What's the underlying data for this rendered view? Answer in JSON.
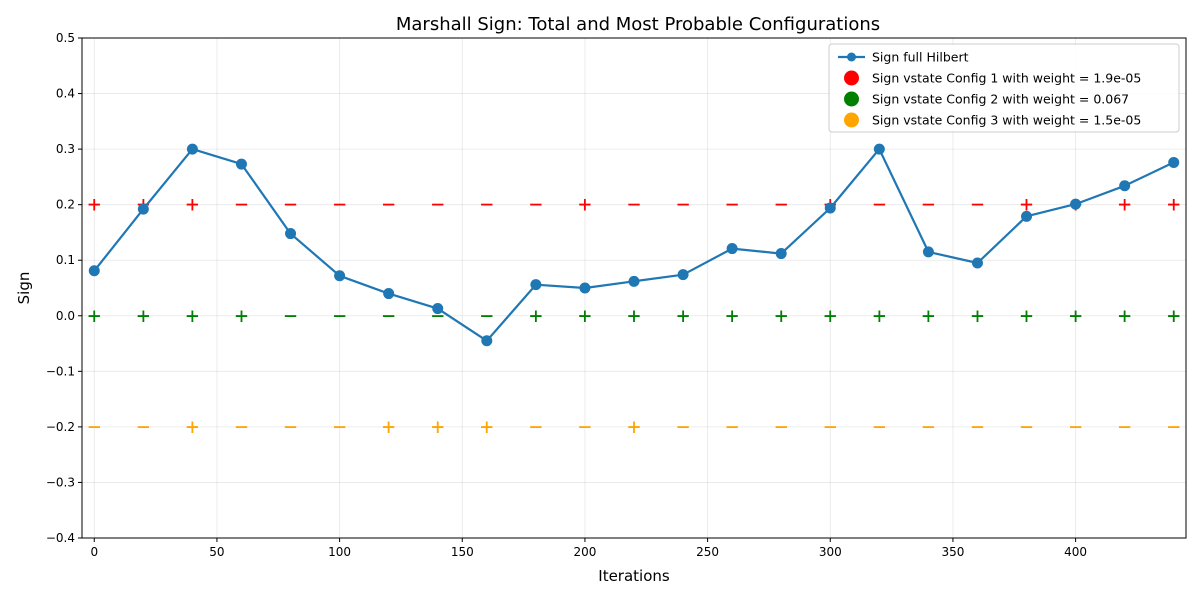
{
  "chart_data": {
    "type": "line",
    "title": "Marshall Sign: Total and Most Probable Configurations",
    "xlabel": "Iterations",
    "ylabel": "Sign",
    "xlim": [
      -5,
      445
    ],
    "ylim": [
      -0.4,
      0.5
    ],
    "xticks": [
      0,
      50,
      100,
      150,
      200,
      250,
      300,
      350,
      400
    ],
    "yticks": [
      -0.4,
      -0.3,
      -0.2,
      -0.1,
      0.0,
      0.1,
      0.2,
      0.3,
      0.4,
      0.5
    ],
    "xtick_labels": [
      "0",
      "50",
      "100",
      "150",
      "200",
      "250",
      "300",
      "350",
      "400"
    ],
    "ytick_labels": [
      "−0.4",
      "−0.3",
      "−0.2",
      "−0.1",
      "0.0",
      "0.1",
      "0.2",
      "0.3",
      "0.4",
      "0.5"
    ],
    "grid": true,
    "legend_position": "top-right",
    "series": [
      {
        "name": "Sign full Hilbert",
        "color": "#1f77b4",
        "x": [
          0,
          20,
          40,
          60,
          80,
          100,
          120,
          140,
          160,
          180,
          200,
          220,
          240,
          260,
          280,
          300,
          320,
          340,
          360,
          380,
          400,
          420,
          440
        ],
        "y": [
          0.081,
          0.192,
          0.3,
          0.273,
          0.148,
          0.072,
          0.04,
          0.013,
          -0.045,
          0.056,
          0.05,
          0.062,
          0.074,
          0.121,
          0.112,
          0.194,
          0.3,
          0.115,
          0.095,
          0.179,
          0.201,
          0.234,
          0.276
        ]
      }
    ],
    "sign_series": [
      {
        "name": "Sign vstate Config 1 with weight = 1.9e-05",
        "color": "#ff0000",
        "y": 0.2,
        "x": [
          0,
          20,
          40,
          60,
          80,
          100,
          120,
          140,
          160,
          180,
          200,
          220,
          240,
          260,
          280,
          300,
          320,
          340,
          360,
          380,
          400,
          420,
          440
        ],
        "signs": [
          "+",
          "+",
          "+",
          "−",
          "−",
          "−",
          "−",
          "−",
          "−",
          "−",
          "+",
          "−",
          "−",
          "−",
          "−",
          "+",
          "−",
          "−",
          "−",
          "+",
          "+",
          "+",
          "+"
        ]
      },
      {
        "name": "Sign vstate Config 2 with weight = 0.067",
        "color": "#008000",
        "y": 0.0,
        "x": [
          0,
          20,
          40,
          60,
          80,
          100,
          120,
          140,
          160,
          180,
          200,
          220,
          240,
          260,
          280,
          300,
          320,
          340,
          360,
          380,
          400,
          420,
          440
        ],
        "signs": [
          "+",
          "+",
          "+",
          "+",
          "−",
          "−",
          "−",
          "−",
          "−",
          "+",
          "+",
          "+",
          "+",
          "+",
          "+",
          "+",
          "+",
          "+",
          "+",
          "+",
          "+",
          "+",
          "+"
        ]
      },
      {
        "name": "Sign vstate Config 3 with weight = 1.5e-05",
        "color": "#ffa500",
        "y": -0.2,
        "x": [
          0,
          20,
          40,
          60,
          80,
          100,
          120,
          140,
          160,
          180,
          200,
          220,
          240,
          260,
          280,
          300,
          320,
          340,
          360,
          380,
          400,
          420,
          440
        ],
        "signs": [
          "−",
          "−",
          "+",
          "−",
          "−",
          "−",
          "+",
          "+",
          "+",
          "−",
          "−",
          "+",
          "−",
          "−",
          "−",
          "−",
          "−",
          "−",
          "−",
          "−",
          "−",
          "−",
          "−"
        ]
      }
    ]
  }
}
